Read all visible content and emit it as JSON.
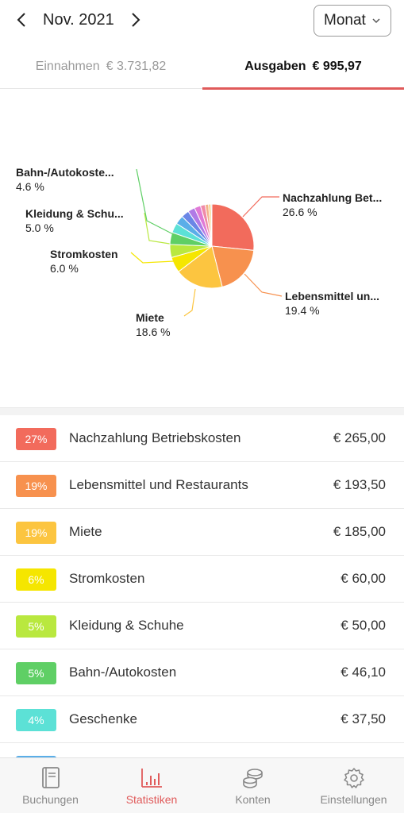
{
  "header": {
    "prev_icon": "chevron-left-icon",
    "month": "Nov. 2021",
    "next_icon": "chevron-right-icon",
    "period": "Monat",
    "period_icon": "chevron-down-icon"
  },
  "tabs": {
    "income_label": "Einnahmen",
    "income_amount": "€ 3.731,82",
    "expense_label": "Ausgaben",
    "expense_amount": "€ 995,97",
    "active": "expense"
  },
  "chart_data": {
    "type": "pie",
    "slices": [
      {
        "label": "Nachzahlung Betriebskosten",
        "display": "Nachzahlung Bet...",
        "pct_text": "26.6 %",
        "value": 265.0,
        "color": "#f26b5c"
      },
      {
        "label": "Lebensmittel und Restaurants",
        "display": "Lebensmittel un...",
        "pct_text": "19.4 %",
        "value": 193.5,
        "color": "#f7914e"
      },
      {
        "label": "Miete",
        "display": "Miete",
        "pct_text": "18.6 %",
        "value": 185.0,
        "color": "#fcc540"
      },
      {
        "label": "Stromkosten",
        "display": "Stromkosten",
        "pct_text": "6.0 %",
        "value": 60.0,
        "color": "#f5e600"
      },
      {
        "label": "Kleidung & Schuhe",
        "display": "Kleidung & Schu...",
        "pct_text": "5.0 %",
        "value": 50.0,
        "color": "#b9e83f"
      },
      {
        "label": "Bahn-/Autokosten",
        "display": "Bahn-/Autokoste...",
        "pct_text": "4.6 %",
        "value": 46.1,
        "color": "#5fcf65"
      },
      {
        "label": "Geschenke",
        "value": 37.5,
        "color": "#5ce1d6"
      },
      {
        "label": "",
        "value": 34.0,
        "color": "#5aaee8"
      },
      {
        "label": "",
        "value": 30.0,
        "color": "#6b86e6"
      },
      {
        "label": "",
        "value": 27.0,
        "color": "#b07ae6"
      },
      {
        "label": "",
        "value": 24.0,
        "color": "#e07ad6"
      },
      {
        "label": "",
        "value": 18.0,
        "color": "#f08aa8"
      },
      {
        "label": "",
        "value": 13.0,
        "color": "#f3b08a"
      },
      {
        "label": "",
        "value": 9.0,
        "color": "#f0d27a"
      },
      {
        "label": "",
        "value": 3.87,
        "color": "#cccccc"
      }
    ]
  },
  "categories": [
    {
      "pct": "27%",
      "name": "Nachzahlung Betriebskosten",
      "amount": "€ 265,00",
      "color": "#f26b5c"
    },
    {
      "pct": "19%",
      "name": "Lebensmittel und Restaurants",
      "amount": "€ 193,50",
      "color": "#f7914e"
    },
    {
      "pct": "19%",
      "name": "Miete",
      "amount": "€ 185,00",
      "color": "#fcc540"
    },
    {
      "pct": "6%",
      "name": "Stromkosten",
      "amount": "€ 60,00",
      "color": "#f5e600"
    },
    {
      "pct": "5%",
      "name": "Kleidung & Schuhe",
      "amount": "€ 50,00",
      "color": "#b9e83f"
    },
    {
      "pct": "5%",
      "name": "Bahn-/Autokosten",
      "amount": "€ 46,10",
      "color": "#5fcf65"
    },
    {
      "pct": "4%",
      "name": "Geschenke",
      "amount": "€ 37,50",
      "color": "#5ce1d6"
    },
    {
      "pct": "",
      "name": "",
      "amount": "",
      "color": "#5aaee8"
    }
  ],
  "bottom_nav": [
    {
      "label": "Buchungen",
      "icon": "book-icon"
    },
    {
      "label": "Statistiken",
      "icon": "bar-chart-icon",
      "active": true
    },
    {
      "label": "Konten",
      "icon": "coins-icon"
    },
    {
      "label": "Einstellungen",
      "icon": "gear-icon"
    }
  ],
  "colors": {
    "accent": "#e05a5a"
  }
}
